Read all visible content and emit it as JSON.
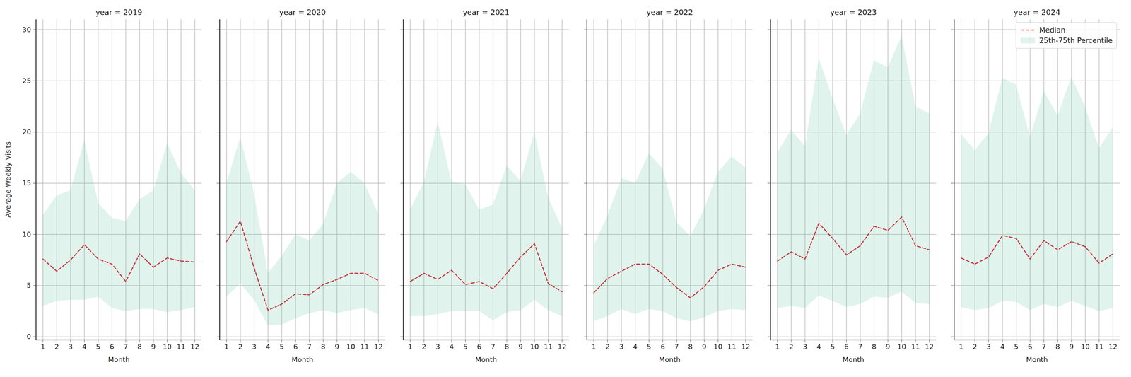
{
  "chart_data": [
    {
      "type": "line",
      "title": "year = 2019",
      "x_label": "Month",
      "y_label": "Average Weekly Visits",
      "x": [
        1,
        2,
        3,
        4,
        5,
        6,
        7,
        8,
        9,
        10,
        11,
        12
      ],
      "series": [
        {
          "name": "Median",
          "type": "line",
          "color": "#c8363d",
          "line_style": "dashed",
          "values": [
            7.6,
            6.4,
            7.5,
            9.0,
            7.6,
            7.1,
            5.4,
            8.1,
            6.8,
            7.7,
            7.4,
            7.3
          ]
        },
        {
          "name": "25th-75th Percentile",
          "type": "area",
          "color": "#66c2a5",
          "low": [
            3.0,
            3.5,
            3.6,
            3.6,
            3.9,
            2.8,
            2.5,
            2.7,
            2.7,
            2.4,
            2.6,
            2.9
          ],
          "high": [
            11.9,
            13.8,
            14.3,
            19.2,
            13.1,
            11.6,
            11.3,
            13.4,
            14.3,
            18.9,
            16.0,
            14.3
          ]
        }
      ],
      "xlim": [
        0.5,
        12.5
      ],
      "ylim": [
        -0.3,
        31
      ],
      "xticks": [
        1,
        2,
        3,
        4,
        5,
        6,
        7,
        8,
        9,
        10,
        11,
        12
      ],
      "yticks": [
        0,
        5,
        10,
        15,
        20,
        25,
        30
      ],
      "grid": true
    },
    {
      "type": "line",
      "title": "year = 2020",
      "x_label": "Month",
      "x": [
        1,
        2,
        3,
        4,
        5,
        6,
        7,
        8,
        9,
        10,
        11,
        12
      ],
      "series": [
        {
          "name": "Median",
          "type": "line",
          "color": "#c8363d",
          "line_style": "dashed",
          "values": [
            9.3,
            11.3,
            6.7,
            2.6,
            3.2,
            4.2,
            4.1,
            5.1,
            5.6,
            6.2,
            6.2,
            5.5
          ]
        },
        {
          "name": "25th-75th Percentile",
          "type": "area",
          "color": "#66c2a5",
          "low": [
            3.9,
            5.2,
            3.6,
            1.1,
            1.2,
            1.8,
            2.3,
            2.6,
            2.3,
            2.6,
            2.8,
            2.2
          ],
          "high": [
            15.0,
            19.5,
            14.0,
            6.2,
            7.9,
            10.0,
            9.4,
            11.0,
            15.0,
            16.1,
            15.0,
            12.0
          ]
        }
      ],
      "xlim": [
        0.5,
        12.5
      ],
      "ylim": [
        -0.3,
        31
      ],
      "xticks": [
        1,
        2,
        3,
        4,
        5,
        6,
        7,
        8,
        9,
        10,
        11,
        12
      ],
      "yticks": [
        0,
        5,
        10,
        15,
        20,
        25,
        30
      ],
      "grid": true,
      "tick_labels": "x"
    },
    {
      "type": "line",
      "title": "year = 2021",
      "x_label": "Month",
      "x": [
        1,
        2,
        3,
        4,
        5,
        6,
        7,
        8,
        9,
        10,
        11,
        12
      ],
      "series": [
        {
          "name": "Median",
          "type": "line",
          "color": "#c8363d",
          "line_style": "dashed",
          "values": [
            5.4,
            6.2,
            5.6,
            6.5,
            5.1,
            5.4,
            4.7,
            6.2,
            7.8,
            9.1,
            5.2,
            4.4
          ]
        },
        {
          "name": "25th-75th Percentile",
          "type": "area",
          "color": "#66c2a5",
          "low": [
            2.0,
            2.0,
            2.2,
            2.5,
            2.5,
            2.5,
            1.6,
            2.4,
            2.6,
            3.6,
            2.6,
            2.0
          ],
          "high": [
            12.4,
            15.1,
            21.0,
            15.1,
            14.9,
            12.4,
            12.9,
            16.7,
            15.2,
            20.0,
            13.6,
            10.6
          ]
        }
      ],
      "xlim": [
        0.5,
        12.5
      ],
      "ylim": [
        -0.3,
        31
      ],
      "xticks": [
        1,
        2,
        3,
        4,
        5,
        6,
        7,
        8,
        9,
        10,
        11,
        12
      ],
      "yticks": [
        0,
        5,
        10,
        15,
        20,
        25,
        30
      ],
      "grid": true,
      "tick_labels": "x"
    },
    {
      "type": "line",
      "title": "year = 2022",
      "x_label": "Month",
      "x": [
        1,
        2,
        3,
        4,
        5,
        6,
        7,
        8,
        9,
        10,
        11,
        12
      ],
      "series": [
        {
          "name": "Median",
          "type": "line",
          "color": "#c8363d",
          "line_style": "dashed",
          "values": [
            4.3,
            5.7,
            6.4,
            7.1,
            7.1,
            6.1,
            4.8,
            3.8,
            4.9,
            6.5,
            7.1,
            6.8
          ]
        },
        {
          "name": "25th-75th Percentile",
          "type": "area",
          "color": "#66c2a5",
          "low": [
            1.5,
            2.0,
            2.7,
            2.2,
            2.7,
            2.5,
            1.8,
            1.5,
            1.9,
            2.5,
            2.7,
            2.6
          ],
          "high": [
            8.9,
            11.8,
            15.5,
            15.0,
            17.9,
            16.4,
            11.2,
            9.8,
            12.5,
            16.1,
            17.6,
            16.5
          ]
        }
      ],
      "xlim": [
        0.5,
        12.5
      ],
      "ylim": [
        -0.3,
        31
      ],
      "xticks": [
        1,
        2,
        3,
        4,
        5,
        6,
        7,
        8,
        9,
        10,
        11,
        12
      ],
      "yticks": [
        0,
        5,
        10,
        15,
        20,
        25,
        30
      ],
      "grid": true,
      "tick_labels": "x"
    },
    {
      "type": "line",
      "title": "year = 2023",
      "x_label": "Month",
      "x": [
        1,
        2,
        3,
        4,
        5,
        6,
        7,
        8,
        9,
        10,
        11,
        12
      ],
      "series": [
        {
          "name": "Median",
          "type": "line",
          "color": "#c8363d",
          "line_style": "dashed",
          "values": [
            7.4,
            8.3,
            7.6,
            11.1,
            9.6,
            8.0,
            8.9,
            10.8,
            10.4,
            11.7,
            8.9,
            8.5
          ]
        },
        {
          "name": "25th-75th Percentile",
          "type": "area",
          "color": "#66c2a5",
          "low": [
            2.8,
            3.0,
            2.8,
            4.0,
            3.5,
            2.9,
            3.2,
            3.9,
            3.8,
            4.4,
            3.3,
            3.2
          ],
          "high": [
            18.0,
            20.2,
            18.6,
            27.2,
            23.3,
            19.7,
            21.8,
            27.0,
            26.3,
            29.4,
            22.5,
            21.8
          ]
        }
      ],
      "xlim": [
        0.5,
        12.5
      ],
      "ylim": [
        -0.3,
        31
      ],
      "xticks": [
        1,
        2,
        3,
        4,
        5,
        6,
        7,
        8,
        9,
        10,
        11,
        12
      ],
      "yticks": [
        0,
        5,
        10,
        15,
        20,
        25,
        30
      ],
      "grid": true,
      "tick_labels": "x"
    },
    {
      "type": "line",
      "title": "year = 2024",
      "x_label": "Month",
      "x": [
        1,
        2,
        3,
        4,
        5,
        6,
        7,
        8,
        9,
        10,
        11,
        12
      ],
      "series": [
        {
          "name": "Median",
          "type": "line",
          "color": "#c8363d",
          "line_style": "dashed",
          "values": [
            7.7,
            7.1,
            7.8,
            9.9,
            9.6,
            7.6,
            9.4,
            8.5,
            9.3,
            8.8,
            7.2,
            8.1
          ]
        },
        {
          "name": "25th-75th Percentile",
          "type": "area",
          "color": "#66c2a5",
          "low": [
            2.9,
            2.6,
            2.8,
            3.5,
            3.4,
            2.6,
            3.2,
            2.9,
            3.5,
            3.0,
            2.5,
            2.8
          ],
          "high": [
            19.8,
            18.2,
            19.9,
            25.3,
            24.6,
            19.5,
            24.0,
            21.6,
            25.4,
            22.4,
            18.4,
            20.5
          ]
        }
      ],
      "xlim": [
        0.5,
        12.5
      ],
      "ylim": [
        -0.3,
        31
      ],
      "xticks": [
        1,
        2,
        3,
        4,
        5,
        6,
        7,
        8,
        9,
        10,
        11,
        12
      ],
      "yticks": [
        0,
        5,
        10,
        15,
        20,
        25,
        30
      ],
      "grid": true,
      "tick_labels": "x",
      "legend": "upper right"
    }
  ]
}
